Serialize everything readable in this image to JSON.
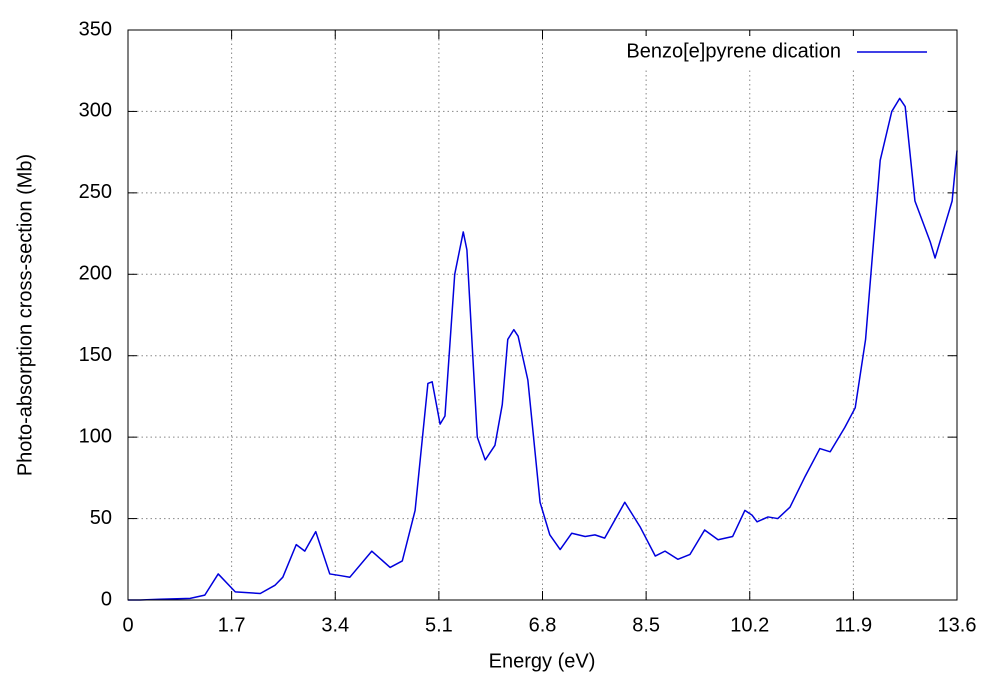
{
  "chart_data": {
    "type": "line",
    "xlabel": "Energy (eV)",
    "ylabel": "Photo-absorption cross-section (Mb)",
    "x": [
      0,
      0.2,
      0.52,
      1.02,
      1.26,
      1.48,
      1.76,
      2.17,
      2.41,
      2.54,
      2.76,
      2.9,
      3.08,
      3.31,
      3.48,
      3.64,
      4.0,
      4.3,
      4.5,
      4.71,
      4.92,
      4.99,
      5.12,
      5.2,
      5.36,
      5.5,
      5.56,
      5.73,
      5.86,
      6.02,
      6.14,
      6.23,
      6.33,
      6.4,
      6.56,
      6.76,
      6.92,
      7.09,
      7.28,
      7.5,
      7.66,
      7.82,
      8.15,
      8.4,
      8.65,
      8.81,
      9.02,
      9.22,
      9.46,
      9.68,
      9.92,
      10.12,
      10.24,
      10.32,
      10.5,
      10.66,
      10.86,
      11.11,
      11.35,
      11.52,
      11.76,
      11.93,
      12.1,
      12.22,
      12.34,
      12.53,
      12.66,
      12.75,
      12.91,
      13.16,
      13.24,
      13.4,
      13.52,
      13.6
    ],
    "series": [
      {
        "name": "Benzo[e]pyrene dication",
        "color": "#0000dd",
        "values": [
          0,
          0,
          0.5,
          1,
          3,
          16,
          5,
          4,
          9,
          14,
          34,
          30,
          42,
          16,
          15,
          14,
          30,
          20,
          24,
          55,
          133,
          134,
          108,
          113,
          200,
          226,
          215,
          100,
          86,
          95,
          120,
          160,
          166,
          162,
          135,
          60,
          40,
          31,
          41,
          39,
          40,
          38,
          60,
          45,
          27,
          30,
          25,
          28,
          43,
          37,
          39,
          55,
          52,
          48,
          51,
          50,
          57,
          76,
          93,
          91,
          106,
          118,
          160,
          215,
          270,
          300,
          308,
          303,
          245,
          220,
          210,
          230,
          245,
          276
        ]
      }
    ],
    "xlim": [
      0,
      13.6
    ],
    "xticks": [
      0,
      1.7,
      3.4,
      5.1,
      6.8,
      8.5,
      10.2,
      11.9,
      13.6
    ],
    "ylim": [
      0,
      350
    ],
    "yticks": [
      0,
      50,
      100,
      150,
      200,
      250,
      300,
      350
    ],
    "grid": true,
    "legend": "top-right"
  }
}
